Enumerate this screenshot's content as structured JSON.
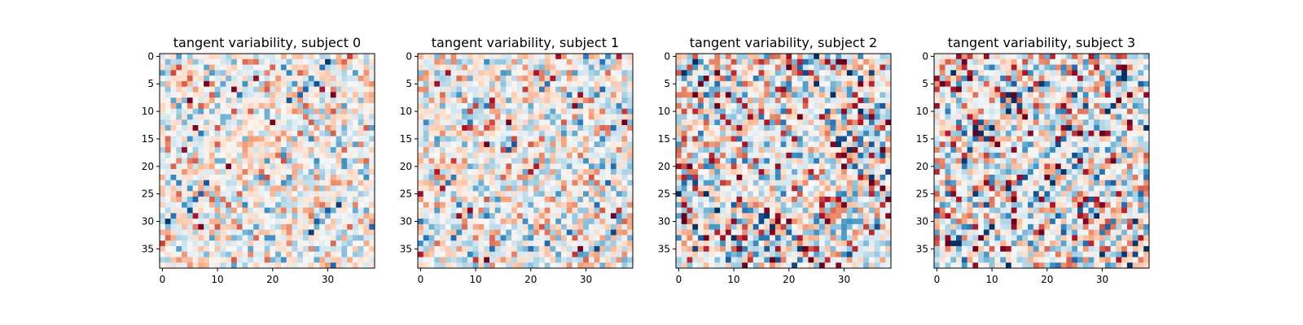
{
  "chart_data": {
    "type": "heatmap",
    "colormap": "RdBu_r",
    "matrix_size": 39,
    "value_range": [
      -1,
      1
    ],
    "cell_values": "not individually legible; random diverging values centered near 0",
    "panels": [
      {
        "title": "tangent variability, subject 0",
        "xticks": [
          0,
          10,
          20,
          30
        ],
        "yticks": [
          0,
          5,
          10,
          15,
          20,
          25,
          30,
          35
        ],
        "xlim": [
          -0.5,
          38.5
        ],
        "ylim": [
          38.5,
          -0.5
        ]
      },
      {
        "title": "tangent variability, subject 1",
        "xticks": [
          0,
          10,
          20,
          30
        ],
        "yticks": [
          0,
          5,
          10,
          15,
          20,
          25,
          30,
          35
        ],
        "xlim": [
          -0.5,
          38.5
        ],
        "ylim": [
          38.5,
          -0.5
        ]
      },
      {
        "title": "tangent variability, subject 2",
        "xticks": [
          0,
          10,
          20,
          30
        ],
        "yticks": [
          0,
          5,
          10,
          15,
          20,
          25,
          30,
          35
        ],
        "xlim": [
          -0.5,
          38.5
        ],
        "ylim": [
          38.5,
          -0.5
        ]
      },
      {
        "title": "tangent variability, subject 3",
        "xticks": [
          0,
          10,
          20,
          30
        ],
        "yticks": [
          0,
          5,
          10,
          15,
          20,
          25,
          30,
          35
        ],
        "xlim": [
          -0.5,
          38.5
        ],
        "ylim": [
          38.5,
          -0.5
        ]
      }
    ]
  }
}
